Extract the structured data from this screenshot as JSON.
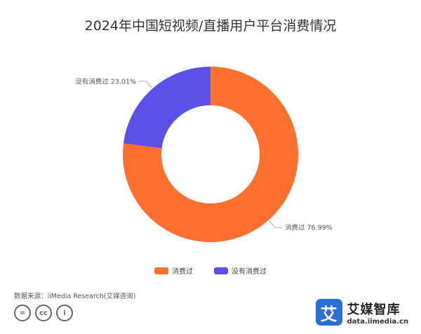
{
  "chart_data": {
    "type": "pie",
    "title": "2024年中国短视频/直播用户平台消费情况",
    "slices": [
      {
        "label": "消费过",
        "value": 76.99,
        "display": "消费过 76.99%",
        "color": "#ff6f2e"
      },
      {
        "label": "没有消费过",
        "value": 23.01,
        "display": "没有消费过 23.01%",
        "color": "#5b50e8"
      }
    ],
    "donut": true,
    "legend_position": "bottom"
  },
  "source_text": "数据来源：iiMedia Research(艾媒咨询)",
  "license_icons": [
    "equals-icon",
    "cc-icon",
    "person-icon"
  ],
  "license_glyphs": [
    "=",
    "cc",
    "i"
  ],
  "brand": {
    "logo_char": "艾",
    "name": "艾媒智库",
    "url": "data.iimedia.cn",
    "color": "#2a6fd6"
  }
}
